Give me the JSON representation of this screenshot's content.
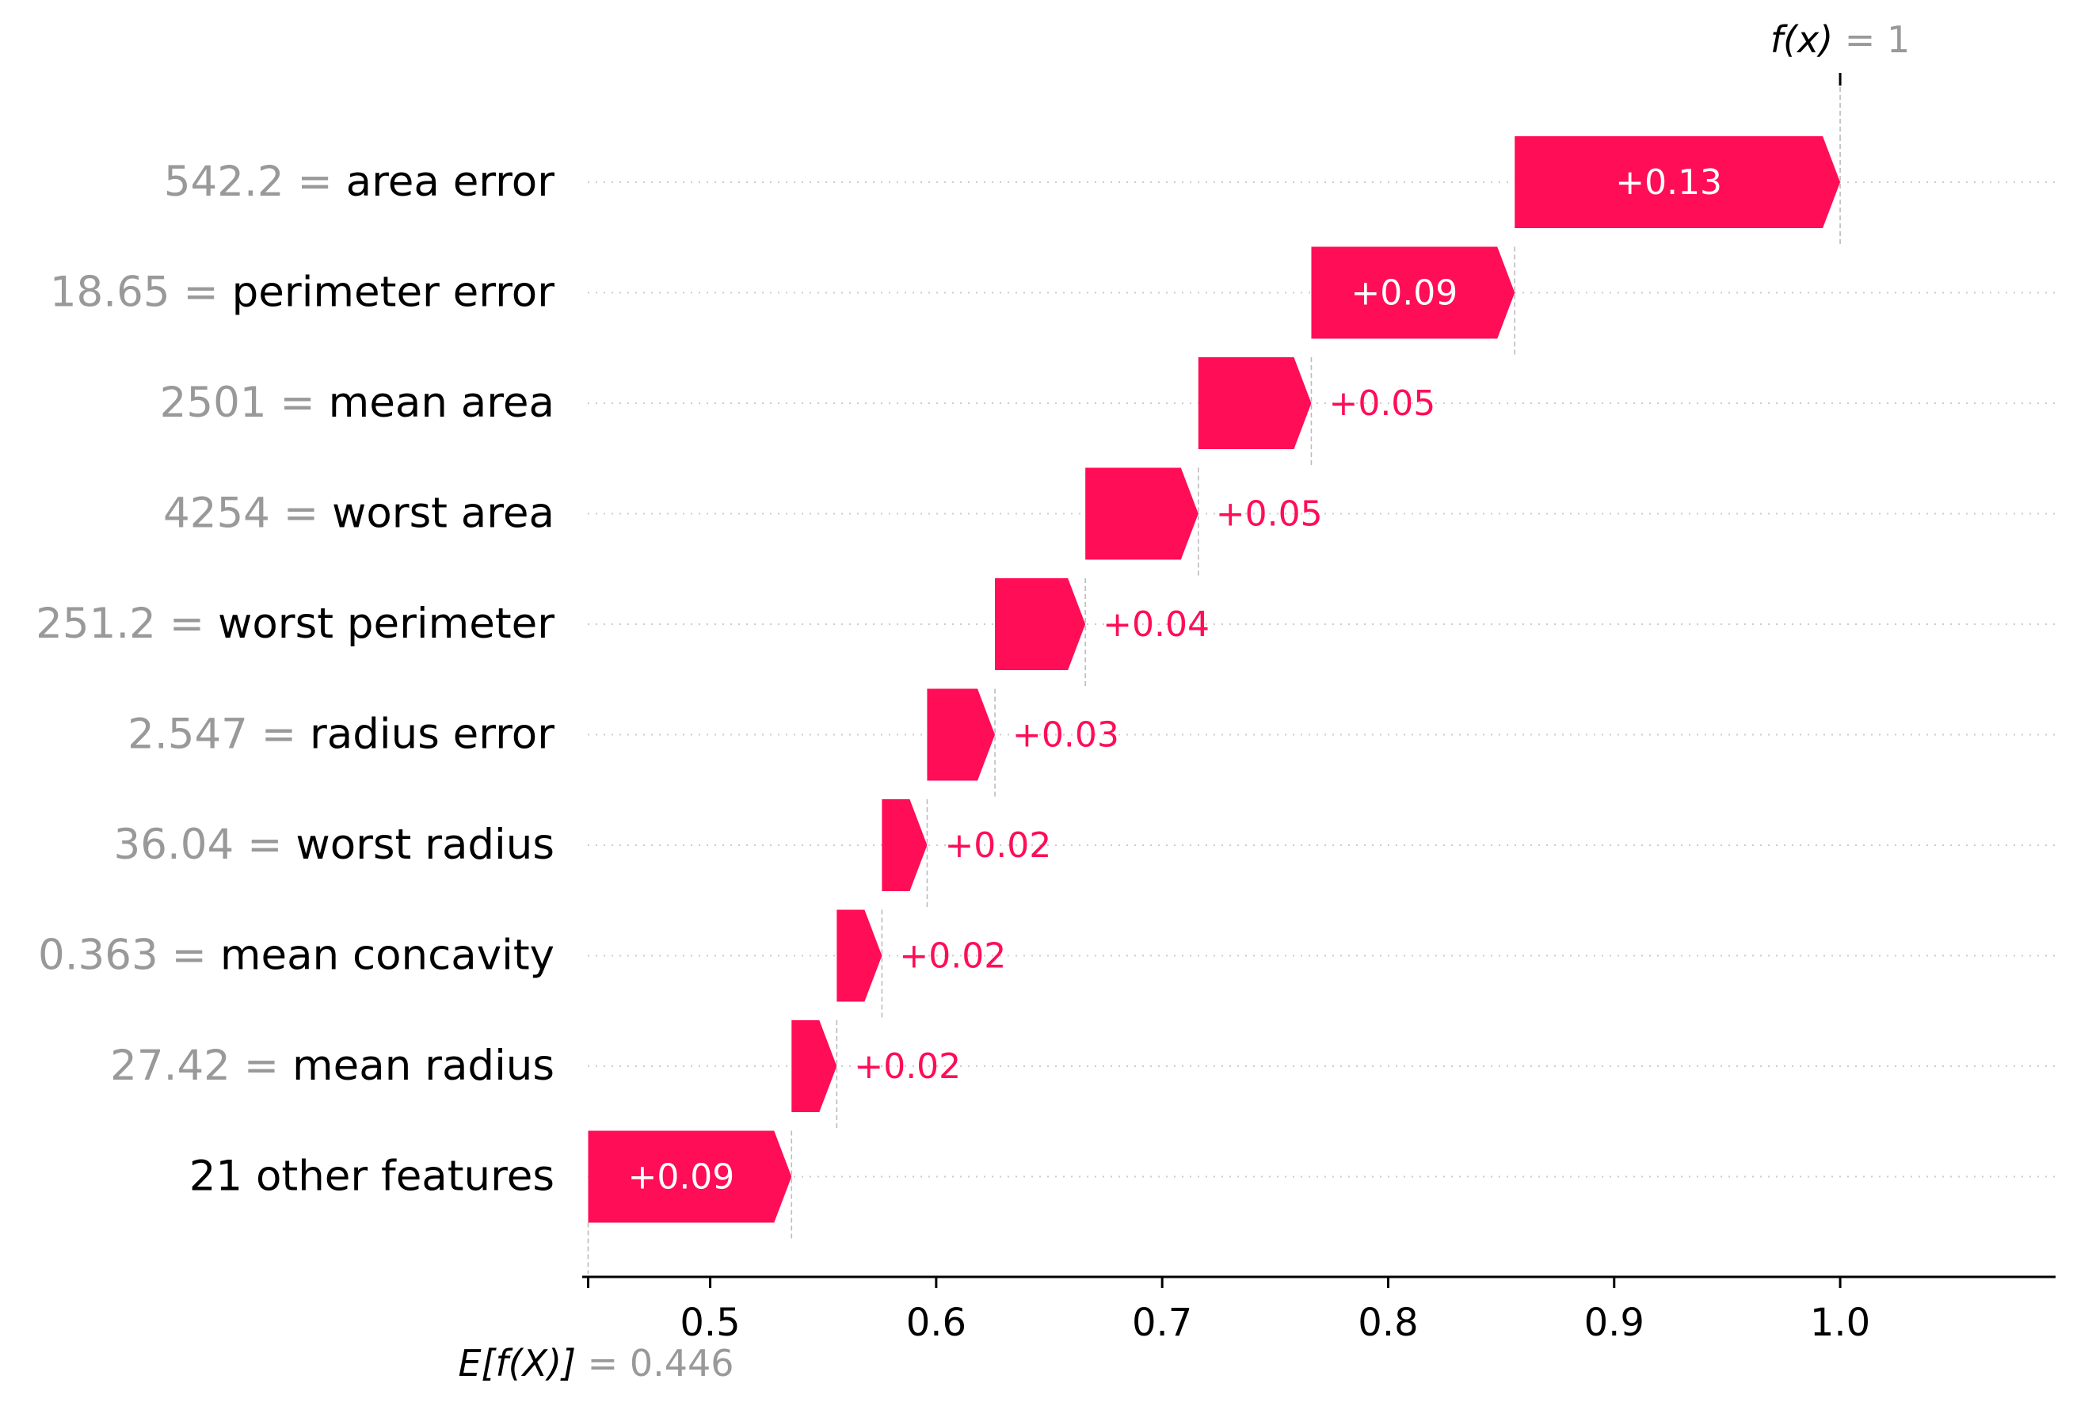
{
  "chart_data": {
    "type": "waterfall",
    "base_value": 0.446,
    "final_value": 1,
    "base_label": {
      "prefix": "E[f(X)]",
      "value_text": "= 0.446"
    },
    "final_label": {
      "prefix": "f(x)",
      "value_text": "= 1"
    },
    "features": [
      {
        "value": "542.2",
        "name": "area error",
        "contribution": 0.13,
        "label": "+0.13",
        "label_inside": true
      },
      {
        "value": "18.65",
        "name": "perimeter error",
        "contribution": 0.09,
        "label": "+0.09",
        "label_inside": true
      },
      {
        "value": "2501",
        "name": "mean area",
        "contribution": 0.05,
        "label": "+0.05",
        "label_inside": false
      },
      {
        "value": "4254",
        "name": "worst area",
        "contribution": 0.05,
        "label": "+0.05",
        "label_inside": false
      },
      {
        "value": "251.2",
        "name": "worst perimeter",
        "contribution": 0.04,
        "label": "+0.04",
        "label_inside": false
      },
      {
        "value": "2.547",
        "name": "radius error",
        "contribution": 0.03,
        "label": "+0.03",
        "label_inside": false
      },
      {
        "value": "36.04",
        "name": "worst radius",
        "contribution": 0.02,
        "label": "+0.02",
        "label_inside": false
      },
      {
        "value": "0.363",
        "name": "mean concavity",
        "contribution": 0.02,
        "label": "+0.02",
        "label_inside": false
      },
      {
        "value": "27.42",
        "name": "mean radius",
        "contribution": 0.02,
        "label": "+0.02",
        "label_inside": false
      },
      {
        "value": "",
        "name": "21 other features",
        "contribution": 0.09,
        "label": "+0.09",
        "label_inside": true
      }
    ],
    "x_ticks": [
      0.5,
      0.6,
      0.7,
      0.8,
      0.9,
      1.0
    ],
    "x_tick_labels": [
      "0.5",
      "0.6",
      "0.7",
      "0.8",
      "0.9",
      "1.0"
    ],
    "xlim": [
      0.446,
      1.09
    ],
    "colors": {
      "positive": "#ff0d57",
      "feature_value": "#999999",
      "text": "#000000",
      "grid": "#cccccc",
      "connector": "#bbbbbb"
    }
  }
}
